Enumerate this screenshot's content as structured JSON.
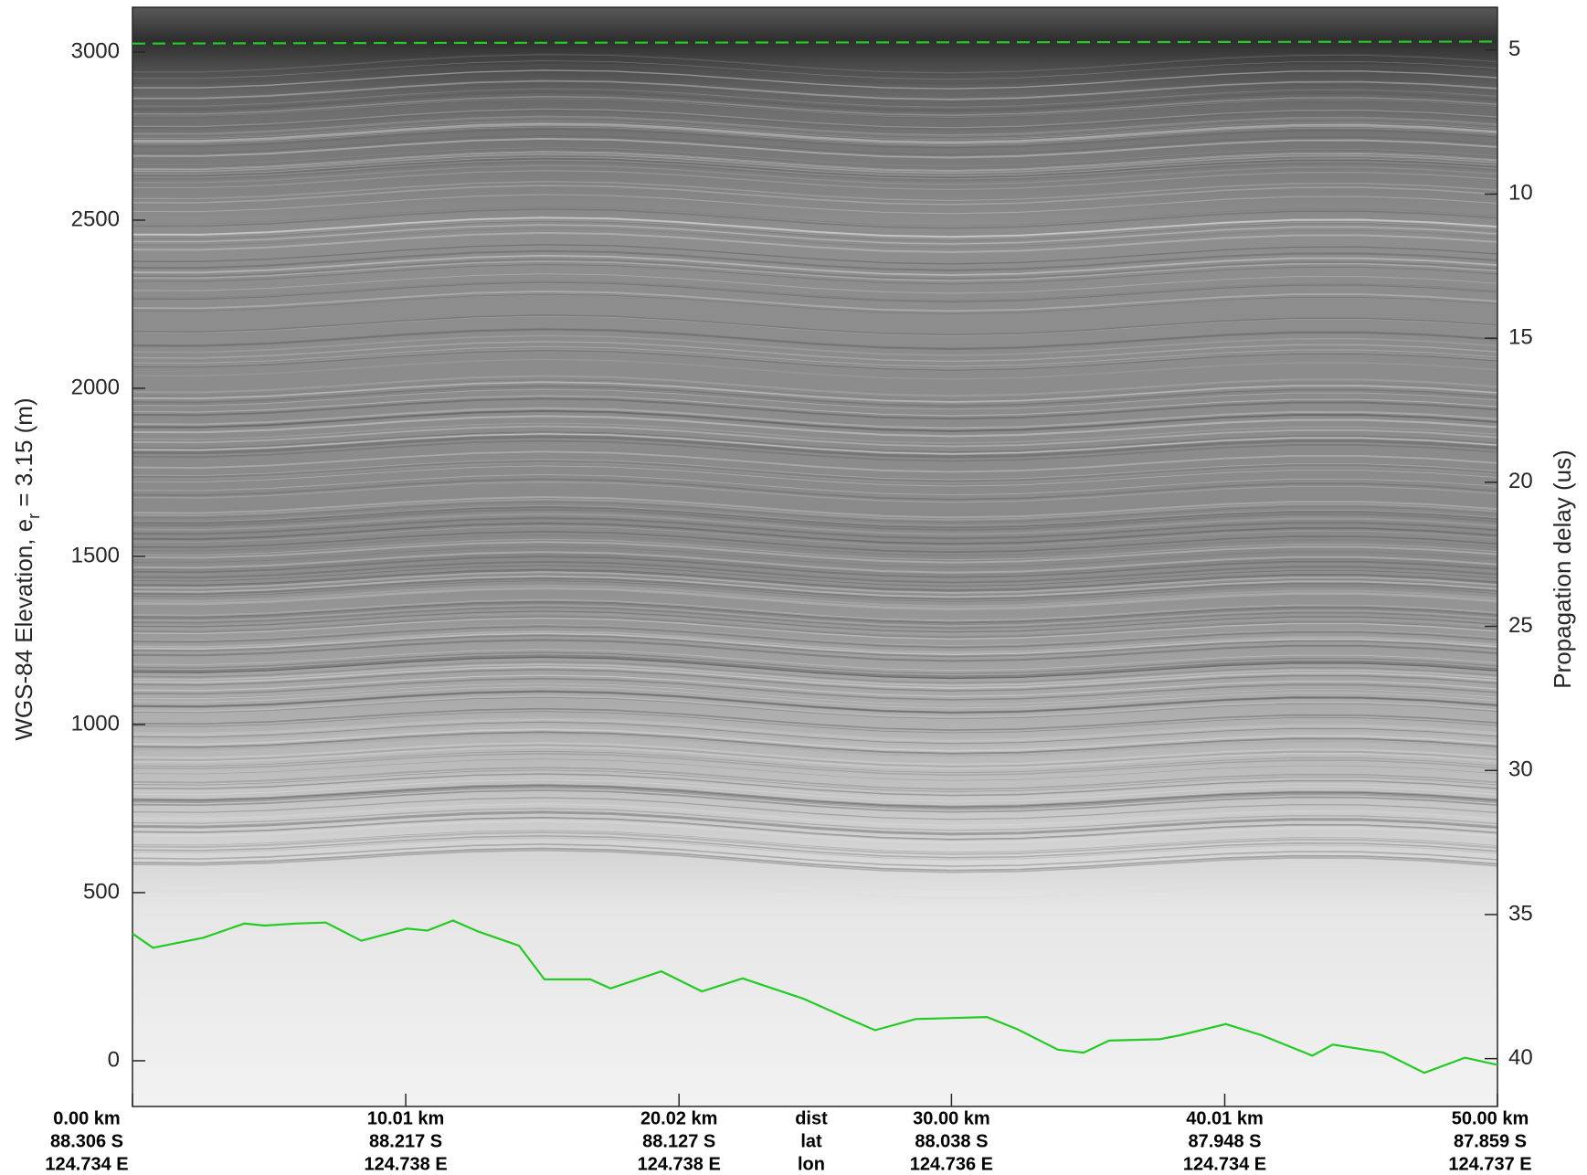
{
  "chart_data": {
    "type": "radargram",
    "ylabel": "WGS-84 Elevation, e",
    "ylabel_sub": "r",
    "ylabel_end": " = 3.15 (m)",
    "y2label": "Propagation delay (us)",
    "xlim": [
      0,
      50
    ],
    "ylim": [
      -136,
      3133
    ],
    "y2lim": [
      41.66,
      3.52
    ],
    "yticks": [
      0,
      500,
      1000,
      1500,
      2000,
      2500,
      3000
    ],
    "y2ticks": [
      5,
      10,
      15,
      20,
      25,
      30,
      35,
      40
    ],
    "xticks": [
      {
        "value": 0,
        "label": "0.00 km"
      },
      {
        "value": 10.01,
        "label": "10.01 km"
      },
      {
        "value": 20.02,
        "label": "20.02 km"
      },
      {
        "value": 30.0,
        "label": "30.00 km"
      },
      {
        "value": 40.01,
        "label": "40.01 km"
      },
      {
        "value": 50.0,
        "label": "50.00 km"
      }
    ],
    "lat_labels": [
      "88.306 S",
      "88.217 S",
      "88.127 S",
      "88.038 S",
      "87.948 S",
      "87.859 S"
    ],
    "lon_labels": [
      "124.734 E",
      "124.738 E",
      "124.738 E",
      "124.736 E",
      "124.734 E",
      "124.737 E"
    ],
    "row_labels": [
      "dist",
      "lat",
      "lon"
    ],
    "series": [
      {
        "color": "#22cc22",
        "dashed": true,
        "x": [
          0,
          10,
          20,
          30,
          40,
          50
        ],
        "values": [
          3025,
          3027,
          3028,
          3029,
          3030,
          3031
        ]
      },
      {
        "color": "#22cc22",
        "dashed": false,
        "x": [
          0,
          0.75,
          2.6,
          4.1,
          4.84,
          5.96,
          7.08,
          8.38,
          10.06,
          10.8,
          11.74,
          12.67,
          14.16,
          15.09,
          16.77,
          17.51,
          19.37,
          20.86,
          22.35,
          24.59,
          26.08,
          27.2,
          28.69,
          31.3,
          32.41,
          33.9,
          34.84,
          35.77,
          37.63,
          38.38,
          40.05,
          41.36,
          43.22,
          43.97,
          45.83,
          47.32,
          48.81,
          50
        ],
        "values": [
          378,
          336,
          366,
          408,
          402,
          408,
          411,
          357,
          393,
          387,
          417,
          384,
          342,
          242,
          242,
          215,
          266,
          206,
          245,
          184,
          130,
          91,
          124,
          130,
          94,
          33,
          24,
          60,
          64,
          76,
          109,
          76,
          15,
          48,
          24,
          -36,
          9,
          -12
        ]
      }
    ]
  }
}
